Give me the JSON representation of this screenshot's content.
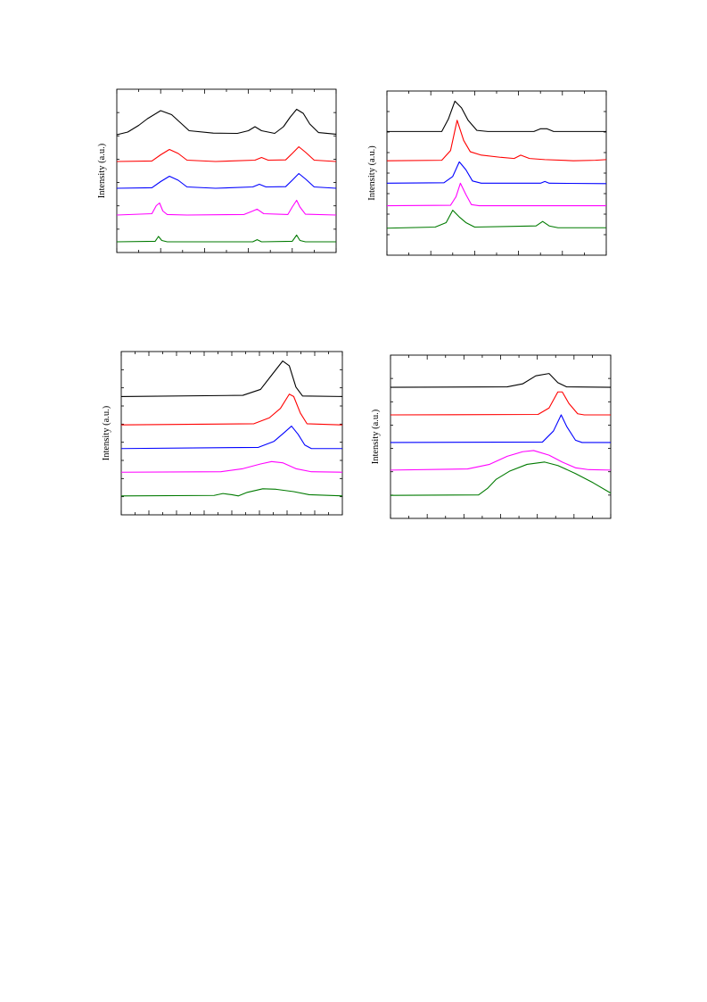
{
  "colors": {
    "series": [
      "#000000",
      "#ff0000",
      "#0000ff",
      "#ff00ff",
      "#007a00"
    ],
    "axis": "#000000"
  },
  "chart_data": [
    {
      "type": "line",
      "panel": "top-left",
      "ylabel": "Intensity (a.u.)",
      "xlim": [
        0,
        10
      ],
      "ylim": [
        0,
        6.1
      ],
      "x_ticks_major": 5,
      "x_minor_per_major": 1,
      "y_ticks": 7,
      "grid": false,
      "series": [
        {
          "values": [
            [
              0,
              4.4
            ],
            [
              0.5,
              4.5
            ],
            [
              1,
              4.75
            ],
            [
              1.4,
              5.0
            ],
            [
              2.0,
              5.3
            ],
            [
              2.5,
              5.15
            ],
            [
              2.9,
              4.85
            ],
            [
              3.3,
              4.55
            ],
            [
              4.4,
              4.46
            ],
            [
              5.5,
              4.45
            ],
            [
              6.0,
              4.55
            ],
            [
              6.3,
              4.7
            ],
            [
              6.6,
              4.55
            ],
            [
              7.2,
              4.45
            ],
            [
              7.6,
              4.7
            ],
            [
              7.9,
              5.05
            ],
            [
              8.2,
              5.35
            ],
            [
              8.5,
              5.2
            ],
            [
              8.8,
              4.8
            ],
            [
              9.2,
              4.48
            ],
            [
              10,
              4.42
            ]
          ]
        },
        {
          "values": [
            [
              0,
              3.4
            ],
            [
              1.6,
              3.42
            ],
            [
              2.0,
              3.65
            ],
            [
              2.4,
              3.85
            ],
            [
              2.8,
              3.7
            ],
            [
              3.2,
              3.45
            ],
            [
              4.5,
              3.4
            ],
            [
              6.3,
              3.45
            ],
            [
              6.6,
              3.55
            ],
            [
              6.9,
              3.45
            ],
            [
              7.7,
              3.46
            ],
            [
              8.0,
              3.7
            ],
            [
              8.3,
              3.95
            ],
            [
              8.6,
              3.75
            ],
            [
              9.0,
              3.45
            ],
            [
              10,
              3.4
            ]
          ]
        },
        {
          "values": [
            [
              0,
              2.4
            ],
            [
              1.6,
              2.42
            ],
            [
              2.0,
              2.65
            ],
            [
              2.4,
              2.85
            ],
            [
              2.8,
              2.7
            ],
            [
              3.2,
              2.45
            ],
            [
              4.5,
              2.4
            ],
            [
              6.2,
              2.45
            ],
            [
              6.5,
              2.55
            ],
            [
              6.8,
              2.45
            ],
            [
              7.7,
              2.46
            ],
            [
              8.0,
              2.7
            ],
            [
              8.3,
              2.95
            ],
            [
              8.6,
              2.75
            ],
            [
              9.0,
              2.45
            ],
            [
              10,
              2.4
            ]
          ]
        },
        {
          "values": [
            [
              0,
              1.4
            ],
            [
              1.6,
              1.45
            ],
            [
              1.8,
              1.75
            ],
            [
              1.95,
              1.85
            ],
            [
              2.1,
              1.55
            ],
            [
              2.3,
              1.42
            ],
            [
              3.2,
              1.4
            ],
            [
              5.8,
              1.42
            ],
            [
              6.2,
              1.55
            ],
            [
              6.4,
              1.62
            ],
            [
              6.7,
              1.45
            ],
            [
              7.8,
              1.42
            ],
            [
              8.0,
              1.7
            ],
            [
              8.2,
              1.95
            ],
            [
              8.35,
              1.7
            ],
            [
              8.6,
              1.43
            ],
            [
              10,
              1.4
            ]
          ]
        },
        {
          "values": [
            [
              0,
              0.4
            ],
            [
              1.75,
              0.42
            ],
            [
              1.9,
              0.6
            ],
            [
              2.05,
              0.45
            ],
            [
              2.3,
              0.4
            ],
            [
              6.2,
              0.4
            ],
            [
              6.4,
              0.48
            ],
            [
              6.6,
              0.4
            ],
            [
              8.0,
              0.42
            ],
            [
              8.2,
              0.65
            ],
            [
              8.35,
              0.45
            ],
            [
              8.6,
              0.4
            ],
            [
              10,
              0.4
            ]
          ]
        }
      ]
    },
    {
      "type": "line",
      "panel": "top-right",
      "ylabel": "Intensity (a.u.)",
      "xlim": [
        0,
        10
      ],
      "ylim": [
        0,
        7.3
      ],
      "x_ticks_major": 5,
      "x_minor_per_major": 1,
      "y_ticks": 8,
      "grid": false,
      "series": [
        {
          "values": [
            [
              0,
              5.5
            ],
            [
              2.5,
              5.5
            ],
            [
              2.8,
              6.05
            ],
            [
              3.1,
              6.85
            ],
            [
              3.4,
              6.55
            ],
            [
              3.7,
              6.0
            ],
            [
              4.1,
              5.55
            ],
            [
              4.6,
              5.5
            ],
            [
              6.7,
              5.5
            ],
            [
              7.0,
              5.62
            ],
            [
              7.3,
              5.62
            ],
            [
              7.6,
              5.5
            ],
            [
              10,
              5.5
            ]
          ]
        },
        {
          "values": [
            [
              0,
              4.2
            ],
            [
              2.5,
              4.22
            ],
            [
              2.9,
              4.65
            ],
            [
              3.2,
              6.0
            ],
            [
              3.5,
              5.1
            ],
            [
              3.8,
              4.6
            ],
            [
              4.3,
              4.45
            ],
            [
              5.2,
              4.35
            ],
            [
              5.8,
              4.3
            ],
            [
              6.1,
              4.45
            ],
            [
              6.5,
              4.3
            ],
            [
              7.2,
              4.25
            ],
            [
              8.5,
              4.2
            ],
            [
              9.5,
              4.22
            ],
            [
              10,
              4.25
            ]
          ]
        },
        {
          "values": [
            [
              0,
              3.2
            ],
            [
              2.6,
              3.22
            ],
            [
              3.0,
              3.5
            ],
            [
              3.3,
              4.15
            ],
            [
              3.6,
              3.8
            ],
            [
              3.9,
              3.3
            ],
            [
              4.3,
              3.2
            ],
            [
              7.0,
              3.2
            ],
            [
              7.2,
              3.28
            ],
            [
              7.4,
              3.2
            ],
            [
              10,
              3.18
            ]
          ]
        },
        {
          "values": [
            [
              0,
              2.2
            ],
            [
              2.9,
              2.22
            ],
            [
              3.15,
              2.6
            ],
            [
              3.35,
              3.2
            ],
            [
              3.6,
              2.7
            ],
            [
              3.85,
              2.25
            ],
            [
              4.2,
              2.2
            ],
            [
              10,
              2.2
            ]
          ]
        },
        {
          "values": [
            [
              0,
              1.2
            ],
            [
              2.2,
              1.25
            ],
            [
              2.7,
              1.45
            ],
            [
              3.0,
              2.0
            ],
            [
              3.3,
              1.7
            ],
            [
              3.6,
              1.45
            ],
            [
              4.0,
              1.25
            ],
            [
              6.8,
              1.3
            ],
            [
              7.1,
              1.5
            ],
            [
              7.4,
              1.3
            ],
            [
              7.8,
              1.22
            ],
            [
              10,
              1.22
            ]
          ]
        }
      ]
    },
    {
      "type": "line",
      "panel": "bottom-left",
      "ylabel": "Intensity (a.u.)",
      "xlim": [
        0,
        10
      ],
      "ylim": [
        0,
        6.9
      ],
      "x_ticks_major": 8,
      "x_minor_per_major": 1,
      "y_ticks": 9,
      "grid": false,
      "series": [
        {
          "values": [
            [
              0,
              5.0
            ],
            [
              5.5,
              5.05
            ],
            [
              6.3,
              5.3
            ],
            [
              6.8,
              5.9
            ],
            [
              7.3,
              6.5
            ],
            [
              7.6,
              6.3
            ],
            [
              7.9,
              5.4
            ],
            [
              8.2,
              5.02
            ],
            [
              10,
              5.0
            ]
          ]
        },
        {
          "values": [
            [
              0,
              3.8
            ],
            [
              6.0,
              3.85
            ],
            [
              6.7,
              4.1
            ],
            [
              7.2,
              4.5
            ],
            [
              7.6,
              5.1
            ],
            [
              7.8,
              5.0
            ],
            [
              8.1,
              4.3
            ],
            [
              8.4,
              3.85
            ],
            [
              10,
              3.8
            ]
          ]
        },
        {
          "values": [
            [
              0,
              2.8
            ],
            [
              6.2,
              2.85
            ],
            [
              6.9,
              3.1
            ],
            [
              7.4,
              3.5
            ],
            [
              7.7,
              3.75
            ],
            [
              8.0,
              3.4
            ],
            [
              8.3,
              2.95
            ],
            [
              8.6,
              2.8
            ],
            [
              10,
              2.8
            ]
          ]
        },
        {
          "values": [
            [
              0,
              1.8
            ],
            [
              4.5,
              1.82
            ],
            [
              5.5,
              1.95
            ],
            [
              6.3,
              2.15
            ],
            [
              6.8,
              2.25
            ],
            [
              7.3,
              2.2
            ],
            [
              7.9,
              1.95
            ],
            [
              8.6,
              1.82
            ],
            [
              10,
              1.8
            ]
          ]
        },
        {
          "values": [
            [
              0,
              0.8
            ],
            [
              4.2,
              0.82
            ],
            [
              4.6,
              0.9
            ],
            [
              5.0,
              0.85
            ],
            [
              5.3,
              0.8
            ],
            [
              5.7,
              0.95
            ],
            [
              6.4,
              1.1
            ],
            [
              7.0,
              1.08
            ],
            [
              7.8,
              0.98
            ],
            [
              8.5,
              0.85
            ],
            [
              10,
              0.8
            ]
          ]
        }
      ]
    },
    {
      "type": "line",
      "panel": "bottom-right",
      "ylabel": "Intensity (a.u.)",
      "xlim": [
        0,
        10
      ],
      "ylim": [
        0,
        7.1
      ],
      "x_ticks_major": 6,
      "x_minor_per_major": 1,
      "y_ticks": 7,
      "grid": false,
      "series": [
        {
          "values": [
            [
              0,
              5.7
            ],
            [
              5.3,
              5.72
            ],
            [
              6.0,
              5.85
            ],
            [
              6.6,
              6.2
            ],
            [
              7.2,
              6.3
            ],
            [
              7.6,
              5.9
            ],
            [
              8.0,
              5.72
            ],
            [
              10,
              5.7
            ]
          ]
        },
        {
          "values": [
            [
              0,
              4.5
            ],
            [
              6.7,
              4.52
            ],
            [
              7.2,
              4.8
            ],
            [
              7.6,
              5.5
            ],
            [
              7.8,
              5.5
            ],
            [
              8.1,
              5.0
            ],
            [
              8.5,
              4.55
            ],
            [
              8.8,
              4.5
            ],
            [
              10,
              4.5
            ]
          ]
        },
        {
          "values": [
            [
              0,
              3.3
            ],
            [
              6.9,
              3.32
            ],
            [
              7.4,
              3.8
            ],
            [
              7.75,
              4.5
            ],
            [
              8.0,
              4.0
            ],
            [
              8.4,
              3.4
            ],
            [
              8.7,
              3.3
            ],
            [
              10,
              3.3
            ]
          ]
        },
        {
          "values": [
            [
              0,
              2.1
            ],
            [
              3.5,
              2.15
            ],
            [
              4.5,
              2.35
            ],
            [
              5.3,
              2.7
            ],
            [
              6.0,
              2.9
            ],
            [
              6.5,
              2.95
            ],
            [
              7.2,
              2.75
            ],
            [
              7.8,
              2.45
            ],
            [
              8.4,
              2.2
            ],
            [
              9.0,
              2.12
            ],
            [
              10,
              2.1
            ]
          ]
        },
        {
          "values": [
            [
              0,
              1.0
            ],
            [
              4.0,
              1.02
            ],
            [
              4.4,
              1.3
            ],
            [
              4.8,
              1.7
            ],
            [
              5.4,
              2.05
            ],
            [
              6.2,
              2.35
            ],
            [
              7.0,
              2.45
            ],
            [
              7.6,
              2.3
            ],
            [
              8.4,
              1.95
            ],
            [
              9.2,
              1.55
            ],
            [
              10,
              1.1
            ]
          ]
        }
      ]
    }
  ]
}
